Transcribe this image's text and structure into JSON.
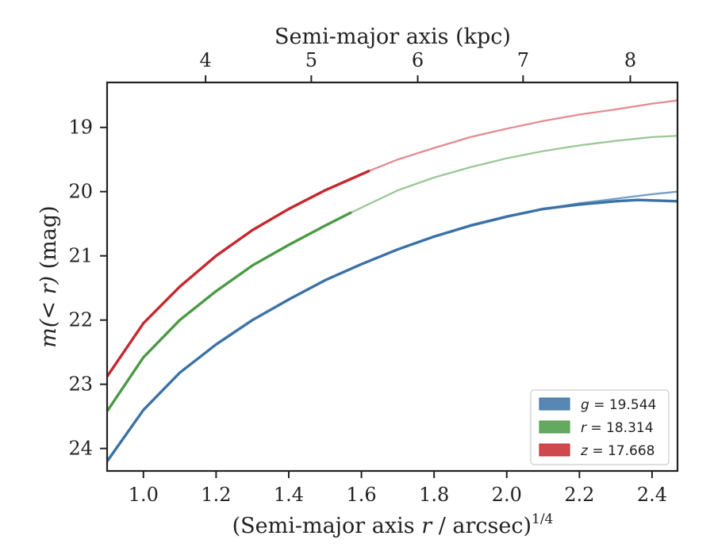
{
  "chart_data": {
    "type": "line",
    "xlabel_prefix": "(Semi-major axis ",
    "xlabel_var": "r",
    "xlabel_suffix": " / arcsec)",
    "xlabel_sup": "1/4",
    "ylabel_prefix": "m(< r)",
    "ylabel_suffix": " (mag)",
    "top_xlabel": "Semi-major axis (kpc)",
    "xlim": [
      0.9,
      2.47
    ],
    "ylim": [
      24.35,
      18.3
    ],
    "y_inverted": true,
    "x_ticks": [
      1.0,
      1.2,
      1.4,
      1.6,
      1.8,
      2.0,
      2.2,
      2.4
    ],
    "x_tick_labels": [
      "1.0",
      "1.2",
      "1.4",
      "1.6",
      "1.8",
      "2.0",
      "2.2",
      "2.4"
    ],
    "y_ticks": [
      19,
      20,
      21,
      22,
      23,
      24
    ],
    "y_tick_labels": [
      "19",
      "20",
      "21",
      "22",
      "23",
      "24"
    ],
    "top_ticks_kpc": [
      4,
      5,
      6,
      7,
      8
    ],
    "top_tick_labels": [
      "4",
      "5",
      "6",
      "7",
      "8"
    ],
    "top_tick_positions_x": [
      1.171,
      1.462,
      1.755,
      2.045,
      2.34
    ],
    "grid": false,
    "legend_position": "lower-right",
    "legend": [
      {
        "var": "g",
        "text": " = 19.544",
        "color": "#3b72a6"
      },
      {
        "var": "r",
        "text": " = 18.314",
        "color": "#4a9a45"
      },
      {
        "var": "z",
        "text": " = 17.668",
        "color": "#c5282e"
      }
    ],
    "series": [
      {
        "name": "g-model",
        "color": "#6f9bc3",
        "style": "thin",
        "x": [
          0.9,
          1.0,
          1.1,
          1.2,
          1.3,
          1.4,
          1.5,
          1.6,
          1.7,
          1.8,
          1.9,
          2.0,
          2.1,
          2.2,
          2.3,
          2.4,
          2.47
        ],
        "y": [
          24.2,
          23.4,
          22.82,
          22.38,
          22.0,
          21.68,
          21.38,
          21.13,
          20.9,
          20.7,
          20.52,
          20.38,
          20.27,
          20.18,
          20.11,
          20.04,
          20.0
        ]
      },
      {
        "name": "g",
        "color": "#3b72a6",
        "style": "thick",
        "x": [
          0.9,
          1.0,
          1.1,
          1.2,
          1.3,
          1.4,
          1.5,
          1.6,
          1.7,
          1.8,
          1.9,
          2.0,
          2.1,
          2.2,
          2.3,
          2.36,
          2.47
        ],
        "y": [
          24.2,
          23.4,
          22.82,
          22.38,
          22.0,
          21.68,
          21.38,
          21.13,
          20.9,
          20.7,
          20.53,
          20.39,
          20.27,
          20.2,
          20.15,
          20.13,
          20.15
        ]
      },
      {
        "name": "r-model",
        "color": "#96c493",
        "style": "thin",
        "x": [
          1.57,
          1.7,
          1.8,
          1.9,
          2.0,
          2.1,
          2.2,
          2.3,
          2.4,
          2.47
        ],
        "y": [
          20.33,
          19.98,
          19.78,
          19.62,
          19.48,
          19.37,
          19.28,
          19.21,
          19.15,
          19.13
        ]
      },
      {
        "name": "r",
        "color": "#4a9a45",
        "style": "thick",
        "x": [
          0.9,
          1.0,
          1.1,
          1.2,
          1.3,
          1.4,
          1.5,
          1.57
        ],
        "y": [
          23.42,
          22.58,
          22.0,
          21.55,
          21.15,
          20.83,
          20.53,
          20.33
        ]
      },
      {
        "name": "z-model",
        "color": "#e2858b",
        "style": "thin",
        "x": [
          1.62,
          1.7,
          1.8,
          1.9,
          2.0,
          2.1,
          2.2,
          2.3,
          2.4,
          2.47
        ],
        "y": [
          19.68,
          19.5,
          19.32,
          19.15,
          19.02,
          18.9,
          18.8,
          18.72,
          18.63,
          18.58
        ]
      },
      {
        "name": "z",
        "color": "#c5282e",
        "style": "thick",
        "x": [
          0.9,
          1.0,
          1.1,
          1.2,
          1.3,
          1.4,
          1.5,
          1.62
        ],
        "y": [
          22.88,
          22.05,
          21.48,
          21.0,
          20.6,
          20.27,
          19.98,
          19.68
        ]
      }
    ]
  }
}
